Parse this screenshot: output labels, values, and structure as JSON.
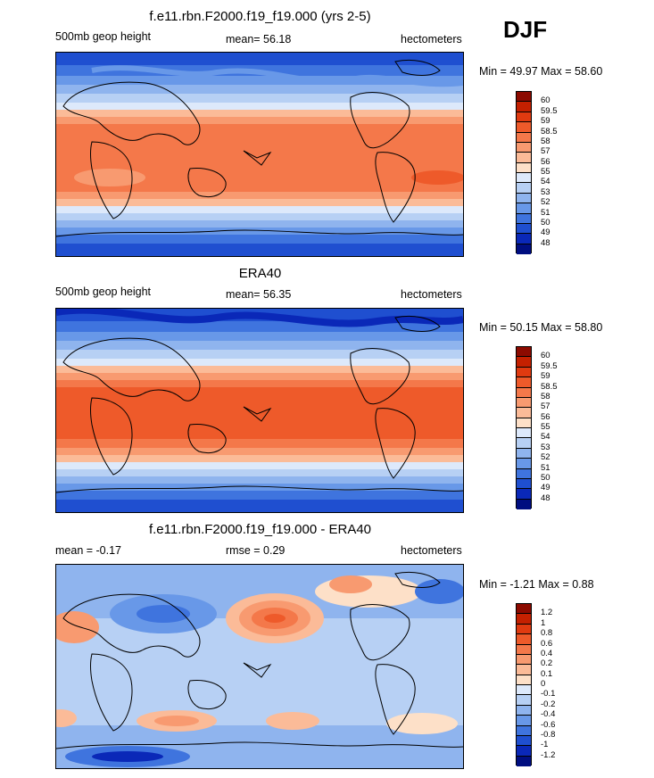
{
  "season": "DJF",
  "panels": [
    {
      "title": "f.e11.rbn.F2000.f19_f19.000 (yrs 2-5)",
      "left_label": "500mb geop height",
      "center_label": "mean=  56.18",
      "right_label": "hectometers",
      "minmax": "Min =  49.97 Max =  58.60"
    },
    {
      "title": "ERA40",
      "left_label": "500mb geop height",
      "center_label": "mean=  56.35",
      "right_label": "hectometers",
      "minmax": "Min =  50.15 Max =  58.80"
    },
    {
      "title": "f.e11.rbn.F2000.f19_f19.000 - ERA40",
      "left_label": "mean =  -0.17",
      "center_label": "rmse =   0.29",
      "right_label": "hectometers",
      "minmax": "Min =  -1.21 Max =   0.88"
    }
  ],
  "colorbars": {
    "field": {
      "labels": [
        "60",
        "59.5",
        "59",
        "58.5",
        "58",
        "57",
        "56",
        "55",
        "54",
        "53",
        "52",
        "51",
        "50",
        "49",
        "48"
      ],
      "colors": [
        "#8c0a00",
        "#c42000",
        "#e03a10",
        "#ee5a2a",
        "#f4784a",
        "#f89a70",
        "#fbbb98",
        "#fde0c8",
        "#dde9fb",
        "#b7d0f4",
        "#8fb4ee",
        "#6898e8",
        "#3f74de",
        "#1f4fd0",
        "#0a28b8",
        "#000e80"
      ]
    },
    "diff": {
      "labels": [
        "1.2",
        "1",
        "0.8",
        "0.6",
        "0.4",
        "0.2",
        "0.1",
        "0",
        "-0.1",
        "-0.2",
        "-0.4",
        "-0.6",
        "-0.8",
        "-1",
        "-1.2"
      ],
      "colors": [
        "#8c0a00",
        "#c42000",
        "#e03a10",
        "#ee5a2a",
        "#f4784a",
        "#f89a70",
        "#fbbb98",
        "#fde0c8",
        "#dde9fb",
        "#b7d0f4",
        "#8fb4ee",
        "#6898e8",
        "#3f74de",
        "#1f4fd0",
        "#0a28b8",
        "#000e80"
      ]
    }
  }
}
